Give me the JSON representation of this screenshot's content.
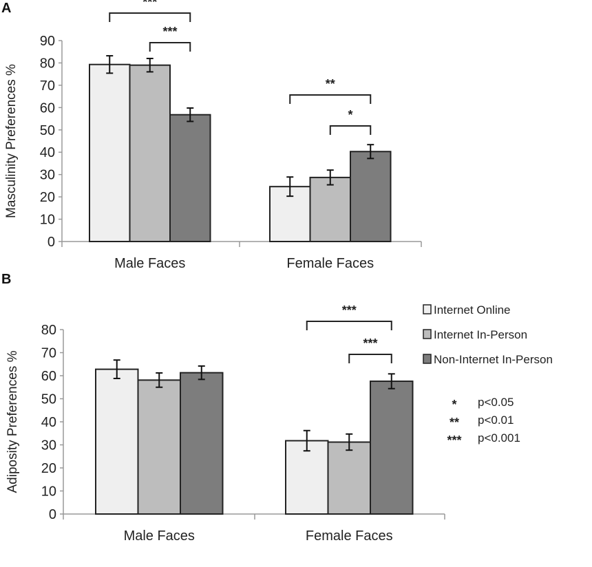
{
  "legend": {
    "series": [
      "Internet Online",
      "Internet In-Person",
      "Non-Internet In-Person"
    ],
    "colors": [
      "#efefef",
      "#bdbdbd",
      "#7d7d7d"
    ]
  },
  "significance_key": [
    {
      "stars": "*",
      "label": "p<0.05"
    },
    {
      "stars": "**",
      "label": "p<0.01"
    },
    {
      "stars": "***",
      "label": "p<0.001"
    }
  ],
  "chart_data": [
    {
      "panel": "A",
      "type": "bar",
      "ylabel": "Masculinity Preferences %",
      "xlabel": "",
      "ylim": [
        0,
        90
      ],
      "yticks": [
        "0",
        "10",
        "20",
        "30",
        "40",
        "50",
        "60",
        "70",
        "80",
        "90"
      ],
      "categories": [
        "Male Faces",
        "Female Faces"
      ],
      "series": [
        {
          "name": "Internet Online",
          "values": [
            79.3,
            24.6
          ],
          "err": [
            3.9,
            4.3
          ]
        },
        {
          "name": "Internet In-Person",
          "values": [
            79.0,
            28.7
          ],
          "err": [
            3.0,
            3.3
          ]
        },
        {
          "name": "Non-Internet In-Person",
          "values": [
            56.8,
            40.3
          ],
          "err": [
            3.0,
            3.1
          ]
        }
      ],
      "comparisons": [
        {
          "category": 0,
          "from": 0,
          "to": 2,
          "label": "***"
        },
        {
          "category": 0,
          "from": 1,
          "to": 2,
          "label": "***"
        },
        {
          "category": 1,
          "from": 0,
          "to": 2,
          "label": "**"
        },
        {
          "category": 1,
          "from": 1,
          "to": 2,
          "label": "*"
        }
      ]
    },
    {
      "panel": "B",
      "type": "bar",
      "ylabel": "Adiposity Preferences %",
      "xlabel": "",
      "ylim": [
        0,
        80
      ],
      "yticks": [
        "0",
        "10",
        "20",
        "30",
        "40",
        "50",
        "60",
        "70",
        "80"
      ],
      "categories": [
        "Male Faces",
        "Female Faces"
      ],
      "series": [
        {
          "name": "Internet Online",
          "values": [
            62.8,
            31.8
          ],
          "err": [
            4.0,
            4.4
          ]
        },
        {
          "name": "Internet In-Person",
          "values": [
            58.1,
            31.2
          ],
          "err": [
            3.1,
            3.5
          ]
        },
        {
          "name": "Non-Internet In-Person",
          "values": [
            61.3,
            57.6
          ],
          "err": [
            2.9,
            3.2
          ]
        }
      ],
      "comparisons": [
        {
          "category": 1,
          "from": 0,
          "to": 2,
          "label": "***"
        },
        {
          "category": 1,
          "from": 1,
          "to": 2,
          "label": "***"
        }
      ]
    }
  ]
}
